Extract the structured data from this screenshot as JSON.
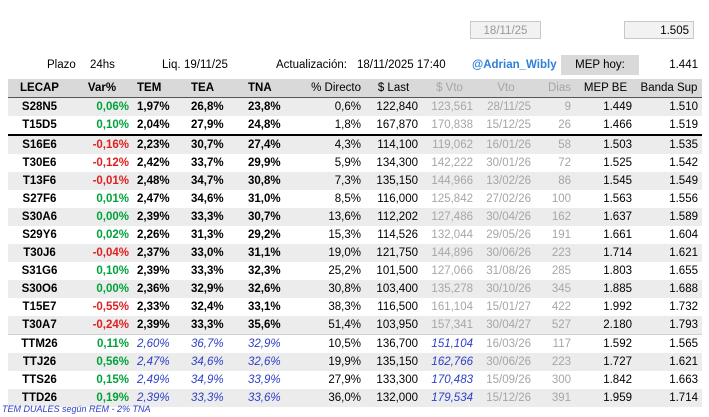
{
  "top": {
    "date": "18/11/25",
    "value": "1.505"
  },
  "info": {
    "plazo_label": "Plazo",
    "plazo_value": "24hs",
    "liq_label": "Liq.",
    "liq_value": "19/11/25",
    "update_label": "Actualización:",
    "update_value": "18/11/2025 17:40",
    "handle": "@Adrian_Wibly",
    "mep_label": "MEP hoy:",
    "mep_value": "1.441"
  },
  "columns": [
    "LECAP",
    "Var%",
    "TEM",
    "TEA",
    "TNA",
    "% Directo",
    "$ Last",
    "$ Vto",
    "Vto",
    "Dias",
    "MEP BE",
    "Banda Sup"
  ],
  "rows": [
    {
      "t": "S28N5",
      "var": "0,06%",
      "tem": "1,97%",
      "tea": "26,8%",
      "tna": "23,8%",
      "dir": "0,6%",
      "last": "122,840",
      "vto": "123,561",
      "date": "28/11/25",
      "dias": "9",
      "mep": "1.449",
      "banda": "1.510",
      "sign": "pos"
    },
    {
      "t": "T15D5",
      "var": "0,10%",
      "tem": "2,04%",
      "tea": "27,9%",
      "tna": "24,8%",
      "dir": "1,8%",
      "last": "167,870",
      "vto": "170,838",
      "date": "15/12/25",
      "dias": "26",
      "mep": "1.466",
      "banda": "1.519",
      "sign": "pos"
    },
    {
      "t": "S16E6",
      "var": "-0,16%",
      "tem": "2,23%",
      "tea": "30,7%",
      "tna": "27,4%",
      "dir": "4,3%",
      "last": "114,100",
      "vto": "119,062",
      "date": "16/01/26",
      "dias": "58",
      "mep": "1.503",
      "banda": "1.535",
      "sign": "neg"
    },
    {
      "t": "T30E6",
      "var": "-0,12%",
      "tem": "2,42%",
      "tea": "33,7%",
      "tna": "29,9%",
      "dir": "5,9%",
      "last": "134,300",
      "vto": "142,222",
      "date": "30/01/26",
      "dias": "72",
      "mep": "1.525",
      "banda": "1.542",
      "sign": "neg"
    },
    {
      "t": "T13F6",
      "var": "-0,01%",
      "tem": "2,48%",
      "tea": "34,7%",
      "tna": "30,8%",
      "dir": "7,3%",
      "last": "135,150",
      "vto": "144,966",
      "date": "13/02/26",
      "dias": "86",
      "mep": "1.545",
      "banda": "1.549",
      "sign": "neg"
    },
    {
      "t": "S27F6",
      "var": "0,01%",
      "tem": "2,47%",
      "tea": "34,6%",
      "tna": "31,0%",
      "dir": "8,5%",
      "last": "116,000",
      "vto": "125,842",
      "date": "27/02/26",
      "dias": "100",
      "mep": "1.563",
      "banda": "1.556",
      "sign": "pos"
    },
    {
      "t": "S30A6",
      "var": "0,00%",
      "tem": "2,39%",
      "tea": "33,3%",
      "tna": "30,7%",
      "dir": "13,6%",
      "last": "112,202",
      "vto": "127,486",
      "date": "30/04/26",
      "dias": "162",
      "mep": "1.637",
      "banda": "1.589",
      "sign": "pos"
    },
    {
      "t": "S29Y6",
      "var": "0,02%",
      "tem": "2,26%",
      "tea": "31,3%",
      "tna": "29,2%",
      "dir": "15,3%",
      "last": "114,526",
      "vto": "132,044",
      "date": "29/05/26",
      "dias": "191",
      "mep": "1.661",
      "banda": "1.604",
      "sign": "pos"
    },
    {
      "t": "T30J6",
      "var": "-0,04%",
      "tem": "2,37%",
      "tea": "33,0%",
      "tna": "31,1%",
      "dir": "19,0%",
      "last": "121,750",
      "vto": "144,896",
      "date": "30/06/26",
      "dias": "223",
      "mep": "1.714",
      "banda": "1.621",
      "sign": "neg"
    },
    {
      "t": "S31G6",
      "var": "0,10%",
      "tem": "2,39%",
      "tea": "33,3%",
      "tna": "32,3%",
      "dir": "25,2%",
      "last": "101,500",
      "vto": "127,066",
      "date": "31/08/26",
      "dias": "285",
      "mep": "1.803",
      "banda": "1.655",
      "sign": "pos"
    },
    {
      "t": "S30O6",
      "var": "0,00%",
      "tem": "2,36%",
      "tea": "32,9%",
      "tna": "32,6%",
      "dir": "30,8%",
      "last": "103,400",
      "vto": "135,278",
      "date": "30/10/26",
      "dias": "345",
      "mep": "1.885",
      "banda": "1.688",
      "sign": "pos"
    },
    {
      "t": "T15E7",
      "var": "-0,55%",
      "tem": "2,33%",
      "tea": "32,4%",
      "tna": "33,1%",
      "dir": "38,3%",
      "last": "116,500",
      "vto": "161,104",
      "date": "15/01/27",
      "dias": "422",
      "mep": "1.992",
      "banda": "1.732",
      "sign": "neg"
    },
    {
      "t": "T30A7",
      "var": "-0,24%",
      "tem": "2,39%",
      "tea": "33,3%",
      "tna": "35,6%",
      "dir": "51,4%",
      "last": "103,950",
      "vto": "157,341",
      "date": "30/04/27",
      "dias": "527",
      "mep": "2.180",
      "banda": "1.793",
      "sign": "neg"
    },
    {
      "t": "TTM26",
      "var": "0,11%",
      "tem": "2,60%",
      "tea": "36,7%",
      "tna": "32,9%",
      "dir": "10,5%",
      "last": "136,700",
      "vto": "151,104",
      "date": "16/03/26",
      "dias": "117",
      "mep": "1.592",
      "banda": "1.565",
      "sign": "pos",
      "dual": true
    },
    {
      "t": "TTJ26",
      "var": "0,56%",
      "tem": "2,47%",
      "tea": "34,6%",
      "tna": "32,6%",
      "dir": "19,9%",
      "last": "135,150",
      "vto": "162,766",
      "date": "30/06/26",
      "dias": "223",
      "mep": "1.727",
      "banda": "1.621",
      "sign": "pos",
      "dual": true
    },
    {
      "t": "TTS26",
      "var": "0,15%",
      "tem": "2,49%",
      "tea": "34,9%",
      "tna": "33,9%",
      "dir": "27,9%",
      "last": "133,300",
      "vto": "170,483",
      "date": "15/09/26",
      "dias": "300",
      "mep": "1.842",
      "banda": "1.663",
      "sign": "pos",
      "dual": true
    },
    {
      "t": "TTD26",
      "var": "0,19%",
      "tem": "2,39%",
      "tea": "33,3%",
      "tna": "33,6%",
      "dir": "36,0%",
      "last": "132,000",
      "vto": "179,534",
      "date": "15/12/26",
      "dias": "391",
      "mep": "1.959",
      "banda": "1.714",
      "sign": "pos",
      "dual": true
    }
  ],
  "footnote": "TEM DUALES según REM - 2% TNA",
  "colors": {
    "positive": "#00a33a",
    "negative": "#e02020",
    "dual_blue": "#2e40c8",
    "muted": "#a6a6a6"
  }
}
